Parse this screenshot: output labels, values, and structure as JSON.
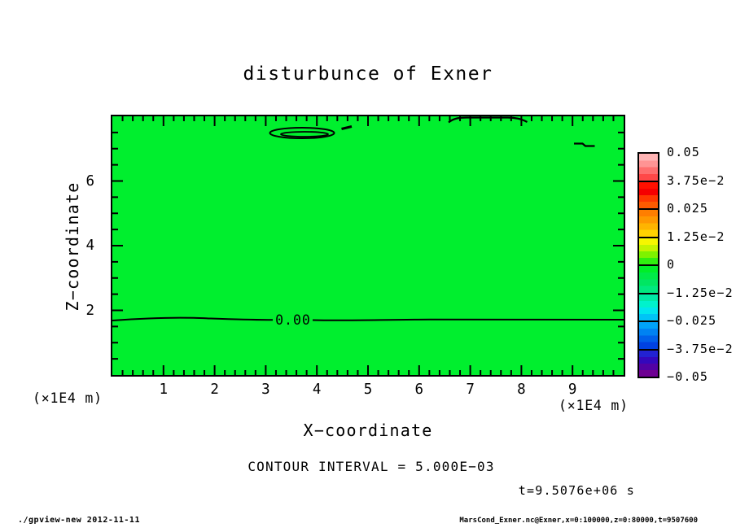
{
  "title": "disturbunce of Exner",
  "plot": {
    "fill_color": "#00ef2e",
    "zero_contour_label": "0.00"
  },
  "xaxis": {
    "label": "X−coordinate",
    "unit": "(×1E4 m)",
    "min": 0,
    "max": 10,
    "major_ticks": [
      1,
      2,
      3,
      4,
      5,
      6,
      7,
      8,
      9
    ],
    "minor_step": 0.2
  },
  "zaxis": {
    "label": "Z−coordinate",
    "unit": "(×1E4 m)",
    "min": 0,
    "max": 8,
    "major_ticks": [
      2,
      4,
      6
    ],
    "minor_step": 0.5
  },
  "colorbar": {
    "labels": [
      "0.05",
      "3.75e−2",
      "0.025",
      "1.25e−2",
      "0",
      "−1.25e−2",
      "−0.025",
      "−3.75e−2",
      "−0.05"
    ],
    "boxes": [
      [
        "#ffb4b4",
        "#ff9494",
        "#ff6e6e",
        "#ff4848"
      ],
      [
        "#ff1000",
        "#f50000",
        "#ff3800",
        "#ff5a00"
      ],
      [
        "#ff7e00",
        "#ff9800",
        "#ffb400",
        "#ffd200"
      ],
      [
        "#f6f600",
        "#c4f400",
        "#7ef200",
        "#30ee10"
      ],
      [
        "#00ee28",
        "#00ea48",
        "#00e662",
        "#00e980"
      ],
      [
        "#00eaa6",
        "#00f2cc",
        "#00e6ee",
        "#00c4f6"
      ],
      [
        "#00a2f8",
        "#0082f2",
        "#0060ea",
        "#0042e2"
      ],
      [
        "#2222d2",
        "#3408bc",
        "#5202a4",
        "#6e0092"
      ]
    ]
  },
  "captions": {
    "contour_interval": "CONTOUR INTERVAL = 5.000E−03",
    "time": "t=9.5076e+06 s"
  },
  "footer": {
    "left": "./gpview-new  2012-11-11",
    "right": "MarsCond_Exner.nc@Exner,x=0:100000,z=0:80000,t=9507600"
  },
  "chart_data": {
    "type": "heatmap",
    "title": "disturbunce of Exner",
    "xlabel": "X−coordinate (×1E4 m)",
    "ylabel": "Z−coordinate (×1E4 m)",
    "xlim": [
      0,
      10
    ],
    "ylim": [
      0,
      8
    ],
    "x_ticks": [
      1,
      2,
      3,
      4,
      5,
      6,
      7,
      8,
      9
    ],
    "y_ticks": [
      2,
      4,
      6
    ],
    "contour_interval": 0.005,
    "time_seconds": 9507600,
    "colorbar_levels": [
      0.05,
      0.0375,
      0.025,
      0.0125,
      0,
      -0.0125,
      -0.025,
      -0.0375,
      -0.05
    ],
    "field": "Exner-function disturbance is ~0 over the whole domain (within ±0.005, single green band)",
    "features": [
      {
        "type": "zero-contour-line",
        "label": "0.00",
        "z": 1.75,
        "x_extent": [
          0,
          10
        ]
      },
      {
        "type": "closed-contour",
        "x_center": 3.7,
        "z": 7.6,
        "x_extent": [
          3.1,
          4.4
        ]
      },
      {
        "type": "contour-fragment",
        "x_center": 4.55,
        "z": 7.7
      },
      {
        "type": "contour-touching-top",
        "x_extent": [
          6.6,
          8.1
        ],
        "z": 7.95
      },
      {
        "type": "contour-fragment",
        "x_center": 9.2,
        "z": 7.15
      }
    ]
  }
}
